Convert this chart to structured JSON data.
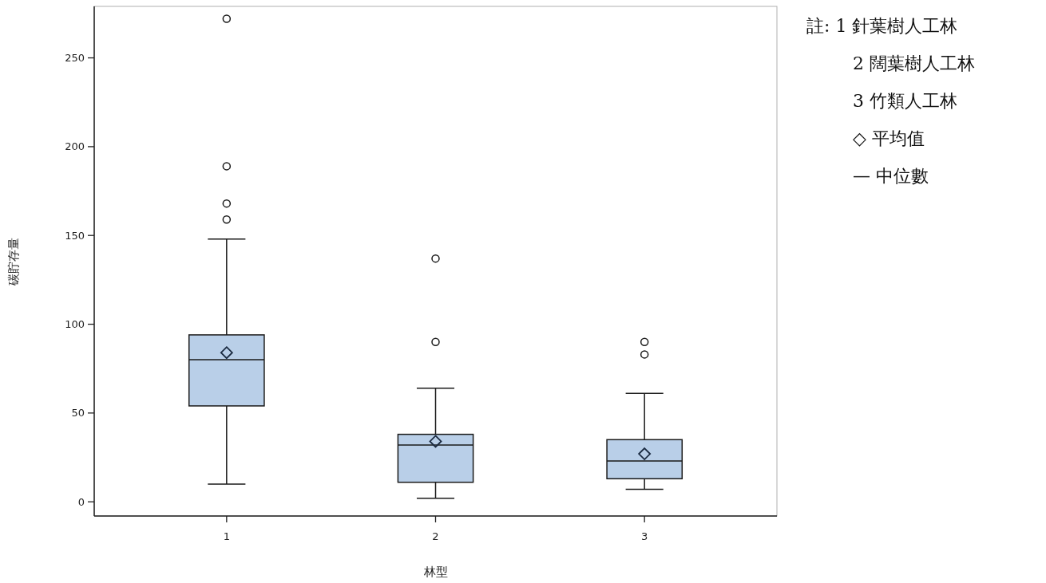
{
  "chart_data": {
    "type": "box",
    "xlabel": "林型",
    "ylabel": "碳貯存量",
    "categories": [
      "1",
      "2",
      "3"
    ],
    "ylim": [
      -8,
      279
    ],
    "yticks": [
      0,
      50,
      100,
      150,
      200,
      250
    ],
    "grid": false,
    "color": "#b9cfe8",
    "boxes": [
      {
        "low": 10,
        "q1": 54,
        "median": 80,
        "q3": 94,
        "high": 148,
        "mean": 84,
        "outliers": [
          272,
          189,
          168,
          159
        ]
      },
      {
        "low": 2,
        "q1": 11,
        "median": 32,
        "q3": 38,
        "high": 64,
        "mean": 34,
        "outliers": [
          137,
          90
        ]
      },
      {
        "low": 7,
        "q1": 13,
        "median": 23,
        "q3": 35,
        "high": 61,
        "mean": 27,
        "outliers": [
          90,
          83
        ]
      }
    ],
    "annotations": [
      "註: 1 針葉樹人工林",
      "2 闊葉樹人工林",
      "3 竹類人工林",
      "◇ 平均值",
      "— 中位數"
    ]
  }
}
